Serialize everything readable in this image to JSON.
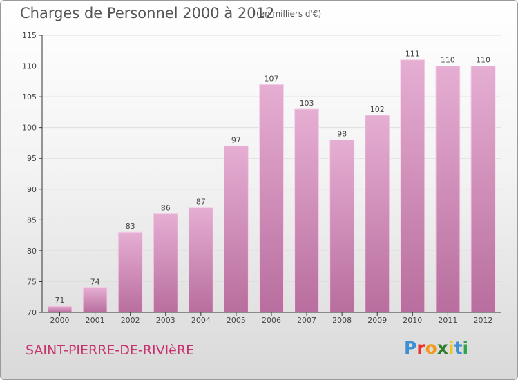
{
  "header": {
    "title": "Charges de Personnel 2000 à 2012",
    "subtitle": "(en milliers d'€)"
  },
  "footer": {
    "location": "SAINT-PIERRE-DE-RIVIèRE",
    "logo_letters": [
      "P",
      "r",
      "o",
      "x",
      "i",
      "t",
      "i"
    ],
    "logo_colors": [
      "#3b8fd4",
      "#e8332a",
      "#f29a1e",
      "#2f7d2b",
      "#f0c419",
      "#3b8fd4",
      "#2ea44f"
    ]
  },
  "colors": {
    "bar_light": "#e6aed3",
    "bar_dark": "#b86e9e",
    "axis": "#333333",
    "grid": "#dedede"
  },
  "chart_data": {
    "type": "bar",
    "title": "Charges de Personnel 2000 à 2012",
    "subtitle": "(en milliers d'€)",
    "categories": [
      "2000",
      "2001",
      "2002",
      "2003",
      "2004",
      "2005",
      "2006",
      "2007",
      "2008",
      "2009",
      "2010",
      "2011",
      "2012"
    ],
    "values": [
      71,
      74,
      83,
      86,
      87,
      97,
      107,
      103,
      98,
      102,
      111,
      110,
      110
    ],
    "ylim": [
      70,
      115
    ],
    "yticks": [
      70,
      75,
      80,
      85,
      90,
      95,
      100,
      105,
      110,
      115
    ],
    "grid": true,
    "data_labels": true
  }
}
